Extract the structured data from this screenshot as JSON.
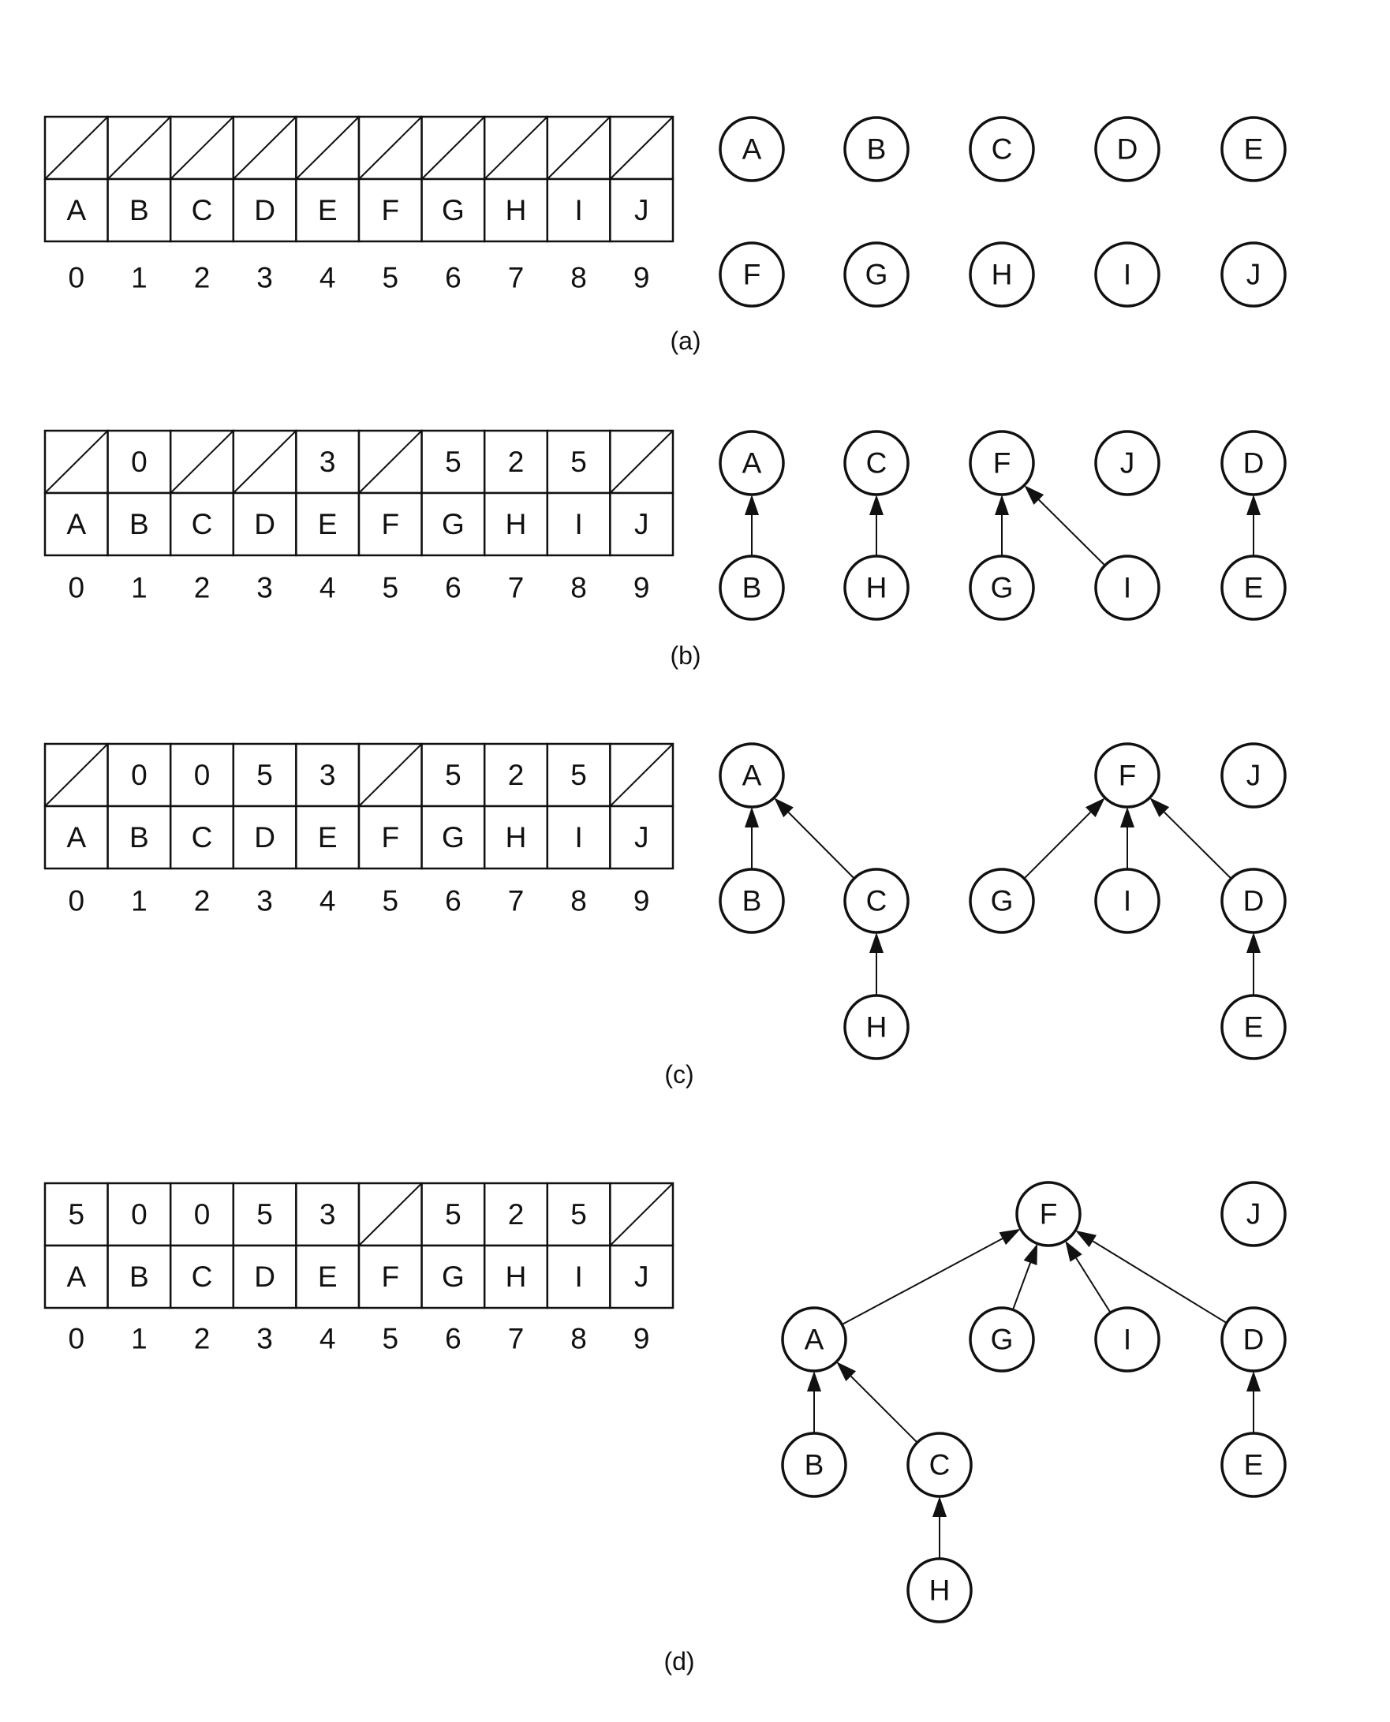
{
  "colors": {
    "ink": "#111111",
    "background": "#ffffff"
  },
  "panels": [
    {
      "caption": "(a)",
      "parents": [
        null,
        null,
        null,
        null,
        null,
        null,
        null,
        null,
        null,
        null
      ],
      "labels": [
        "A",
        "B",
        "C",
        "D",
        "E",
        "F",
        "G",
        "H",
        "I",
        "J"
      ],
      "indices": [
        "0",
        "1",
        "2",
        "3",
        "4",
        "5",
        "6",
        "7",
        "8",
        "9"
      ],
      "nodes": [
        "A",
        "B",
        "C",
        "D",
        "E",
        "F",
        "G",
        "H",
        "I",
        "J"
      ],
      "edges": []
    },
    {
      "caption": "(b)",
      "parents": [
        null,
        "0",
        null,
        null,
        "3",
        null,
        "5",
        "2",
        "5",
        null
      ],
      "labels": [
        "A",
        "B",
        "C",
        "D",
        "E",
        "F",
        "G",
        "H",
        "I",
        "J"
      ],
      "indices": [
        "0",
        "1",
        "2",
        "3",
        "4",
        "5",
        "6",
        "7",
        "8",
        "9"
      ],
      "nodes": [
        "A",
        "C",
        "F",
        "J",
        "D",
        "B",
        "H",
        "G",
        "I",
        "E"
      ],
      "edges": [
        {
          "from": "B",
          "to": "A"
        },
        {
          "from": "H",
          "to": "C"
        },
        {
          "from": "G",
          "to": "F"
        },
        {
          "from": "I",
          "to": "F"
        },
        {
          "from": "E",
          "to": "D"
        }
      ]
    },
    {
      "caption": "(c)",
      "parents": [
        null,
        "0",
        "0",
        "5",
        "3",
        null,
        "5",
        "2",
        "5",
        null
      ],
      "labels": [
        "A",
        "B",
        "C",
        "D",
        "E",
        "F",
        "G",
        "H",
        "I",
        "J"
      ],
      "indices": [
        "0",
        "1",
        "2",
        "3",
        "4",
        "5",
        "6",
        "7",
        "8",
        "9"
      ],
      "nodes": [
        "A",
        "F",
        "J",
        "B",
        "C",
        "G",
        "I",
        "D",
        "H",
        "E"
      ],
      "edges": [
        {
          "from": "B",
          "to": "A"
        },
        {
          "from": "C",
          "to": "A"
        },
        {
          "from": "H",
          "to": "C"
        },
        {
          "from": "G",
          "to": "F"
        },
        {
          "from": "I",
          "to": "F"
        },
        {
          "from": "D",
          "to": "F"
        },
        {
          "from": "E",
          "to": "D"
        }
      ]
    },
    {
      "caption": "(d)",
      "parents": [
        "5",
        "0",
        "0",
        "5",
        "3",
        null,
        "5",
        "2",
        "5",
        null
      ],
      "labels": [
        "A",
        "B",
        "C",
        "D",
        "E",
        "F",
        "G",
        "H",
        "I",
        "J"
      ],
      "indices": [
        "0",
        "1",
        "2",
        "3",
        "4",
        "5",
        "6",
        "7",
        "8",
        "9"
      ],
      "nodes": [
        "F",
        "J",
        "A",
        "G",
        "I",
        "D",
        "B",
        "C",
        "E",
        "H"
      ],
      "edges": [
        {
          "from": "A",
          "to": "F"
        },
        {
          "from": "G",
          "to": "F"
        },
        {
          "from": "I",
          "to": "F"
        },
        {
          "from": "D",
          "to": "F"
        },
        {
          "from": "B",
          "to": "A"
        },
        {
          "from": "C",
          "to": "A"
        },
        {
          "from": "H",
          "to": "C"
        },
        {
          "from": "E",
          "to": "D"
        }
      ]
    }
  ]
}
